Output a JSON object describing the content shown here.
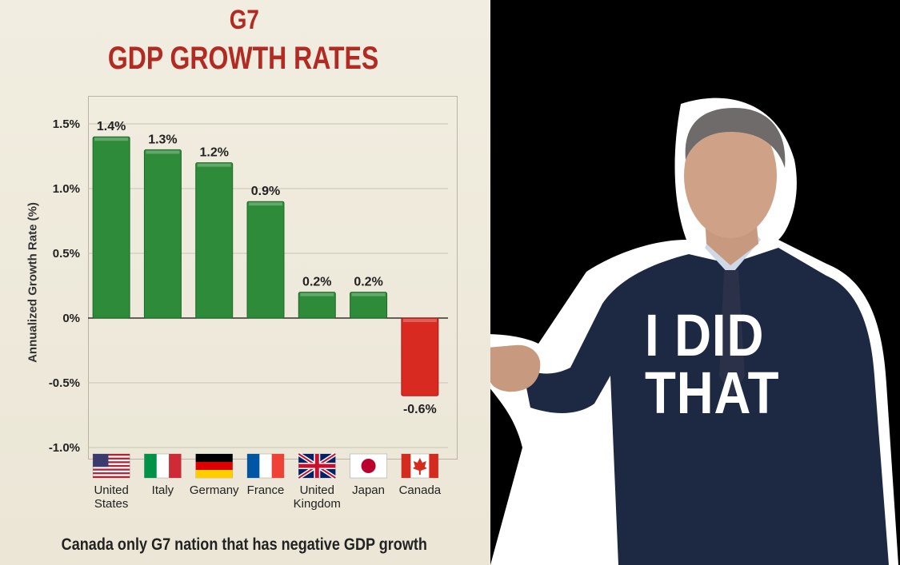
{
  "header": {
    "title_line1": "G7",
    "title_line2": "GDP GROWTH RATES"
  },
  "caption": "Canada only G7 nation that has negative GDP growth",
  "slogan": {
    "line1": "I DID",
    "line2": "THAT"
  },
  "colors": {
    "title": "#b22a22",
    "positive_bar": "#2e8b3a",
    "negative_bar": "#d92a22",
    "background_panel": "#efebdd",
    "background_right": "#000000"
  },
  "chart_data": {
    "type": "bar",
    "title": "G7 GDP GROWTH RATES",
    "ylabel": "Annualized Growth Rate (%)",
    "xlabel": "",
    "ylim": [
      -1.0,
      1.5
    ],
    "yticks": [
      1.5,
      1.0,
      0.5,
      0,
      -0.5,
      -1.0
    ],
    "ytick_labels": [
      "1.5%",
      "1.0%",
      "0.5%",
      "0%",
      "-0.5%",
      "-1.0%"
    ],
    "grid": true,
    "categories": [
      "United States",
      "Italy",
      "Germany",
      "France",
      "United Kingdom",
      "Japan",
      "Canada"
    ],
    "category_lines": [
      [
        "United",
        "States"
      ],
      [
        "Italy"
      ],
      [
        "Germany"
      ],
      [
        "France"
      ],
      [
        "United",
        "Kingdom"
      ],
      [
        "Japan"
      ],
      [
        "Canada"
      ]
    ],
    "flags": [
      "flag-us-icon",
      "flag-italy-icon",
      "flag-germany-icon",
      "flag-france-icon",
      "flag-uk-icon",
      "flag-japan-icon",
      "flag-canada-icon"
    ],
    "values": [
      1.4,
      1.3,
      1.2,
      0.9,
      0.2,
      0.2,
      -0.6
    ],
    "value_labels": [
      "1.4%",
      "1.3%",
      "1.2%",
      "0.9%",
      "0.2%",
      "0.2%",
      "-0.6%"
    ]
  }
}
